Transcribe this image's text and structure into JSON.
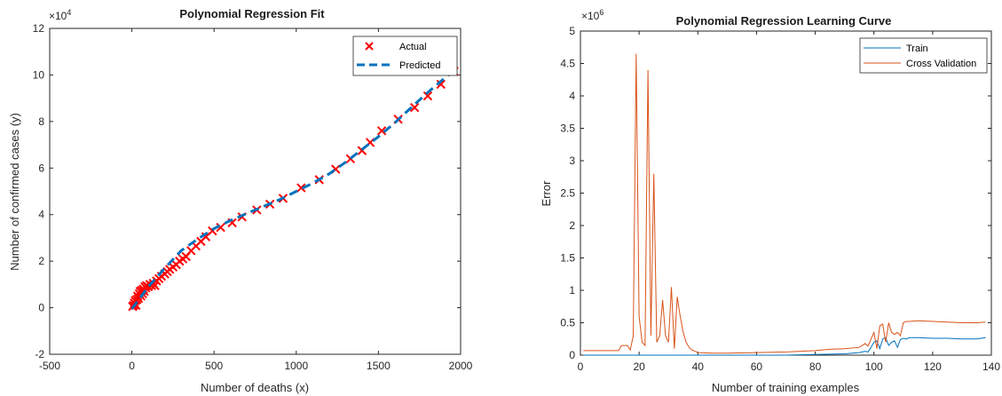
{
  "chart_data": [
    {
      "type": "scatter",
      "title": "Polynomial Regression Fit",
      "xlabel": "Number of deaths (x)",
      "ylabel": "Number of confirmed cases (y)",
      "xlim": [
        -500,
        2000
      ],
      "ylim": [
        -2,
        12
      ],
      "x_ticks": [
        "-500",
        "0",
        "500",
        "1000",
        "1500",
        "2000"
      ],
      "y_ticks": [
        "-2",
        "0",
        "2",
        "4",
        "6",
        "8",
        "10",
        "12"
      ],
      "y_multiplier": "×10",
      "y_multiplier_exp": "4",
      "legend_placement": "top-right",
      "series": [
        {
          "name": "Actual",
          "marker": "x",
          "color": "#ff0000",
          "x": [
            5,
            10,
            15,
            20,
            25,
            30,
            35,
            40,
            45,
            50,
            55,
            60,
            65,
            70,
            75,
            80,
            85,
            90,
            100,
            110,
            120,
            130,
            140,
            150,
            165,
            180,
            200,
            215,
            230,
            250,
            270,
            290,
            310,
            330,
            360,
            390,
            420,
            450,
            490,
            540,
            610,
            670,
            760,
            840,
            920,
            1030,
            1140,
            1240,
            1330,
            1400,
            1450,
            1520,
            1620,
            1720,
            1800,
            1880,
            1960
          ],
          "y": [
            0.05,
            0.1,
            0.2,
            0.3,
            0.1,
            0.35,
            0.5,
            0.4,
            0.6,
            0.7,
            0.5,
            0.75,
            0.6,
            0.8,
            0.7,
            0.9,
            0.85,
            0.95,
            0.9,
            1.0,
            0.95,
            1.05,
            0.95,
            1.15,
            1.25,
            1.35,
            1.45,
            1.55,
            1.65,
            1.75,
            1.85,
            2.0,
            2.1,
            2.2,
            2.45,
            2.65,
            2.85,
            3.05,
            3.3,
            3.45,
            3.65,
            3.9,
            4.2,
            4.45,
            4.7,
            5.15,
            5.5,
            5.95,
            6.4,
            6.75,
            7.1,
            7.6,
            8.1,
            8.6,
            9.1,
            9.6,
            10.15
          ]
        },
        {
          "name": "Predicted",
          "line": "dashed",
          "color": "#0072bd",
          "x": [
            0,
            100,
            200,
            300,
            400,
            500,
            600,
            700,
            800,
            900,
            1000,
            1100,
            1200,
            1300,
            1400,
            1500,
            1600,
            1700,
            1800,
            1900,
            1960
          ],
          "y": [
            -0.05,
            0.9,
            1.7,
            2.45,
            2.95,
            3.4,
            3.75,
            4.05,
            4.35,
            4.65,
            5.0,
            5.35,
            5.75,
            6.25,
            6.8,
            7.35,
            7.95,
            8.6,
            9.25,
            9.85,
            10.2
          ]
        }
      ]
    },
    {
      "type": "line",
      "title": "Polynomial Regression Learning Curve",
      "xlabel": "Number of training examples",
      "ylabel": "Error",
      "xlim": [
        0,
        140
      ],
      "ylim": [
        0,
        5
      ],
      "x_ticks": [
        "0",
        "20",
        "40",
        "60",
        "80",
        "100",
        "120",
        "140"
      ],
      "y_ticks": [
        "0",
        "0.5",
        "1",
        "1.5",
        "2",
        "2.5",
        "3",
        "3.5",
        "4",
        "4.5",
        "5"
      ],
      "y_multiplier": "×10",
      "y_multiplier_exp": "6",
      "legend_placement": "top-right",
      "series": [
        {
          "name": "Train",
          "color": "#0072bd",
          "x": [
            1,
            10,
            20,
            30,
            40,
            50,
            60,
            70,
            80,
            90,
            95,
            97,
            98,
            99,
            100,
            101,
            102,
            103,
            104,
            105,
            106,
            107,
            108,
            109,
            110,
            111,
            112,
            115,
            120,
            125,
            130,
            135,
            138
          ],
          "y": [
            0.0,
            0.0,
            0.0,
            0.0,
            0.0,
            0.0,
            0.0,
            0.0,
            0.01,
            0.02,
            0.04,
            0.06,
            0.05,
            0.12,
            0.2,
            0.22,
            0.1,
            0.25,
            0.27,
            0.15,
            0.2,
            0.22,
            0.12,
            0.24,
            0.26,
            0.25,
            0.27,
            0.27,
            0.26,
            0.26,
            0.25,
            0.25,
            0.27
          ]
        },
        {
          "name": "Cross Validation",
          "color": "#d95319",
          "x": [
            1,
            5,
            10,
            13,
            14,
            15,
            16,
            17,
            18,
            19,
            20,
            21,
            22,
            23,
            24,
            25,
            26,
            27,
            28,
            29,
            30,
            31,
            32,
            33,
            34,
            35,
            36,
            37,
            38,
            39,
            40,
            45,
            50,
            60,
            70,
            80,
            85,
            90,
            95,
            97,
            98,
            99,
            100,
            101,
            102,
            103,
            104,
            105,
            106,
            107,
            108,
            109,
            110,
            111,
            112,
            115,
            120,
            125,
            130,
            135,
            138
          ],
          "y": [
            0.07,
            0.07,
            0.07,
            0.07,
            0.15,
            0.15,
            0.15,
            0.08,
            0.3,
            4.65,
            0.6,
            0.2,
            0.15,
            4.4,
            0.3,
            2.8,
            0.2,
            0.3,
            0.85,
            0.3,
            0.2,
            1.05,
            0.1,
            0.9,
            0.6,
            0.35,
            0.2,
            0.12,
            0.08,
            0.06,
            0.04,
            0.03,
            0.03,
            0.04,
            0.05,
            0.07,
            0.09,
            0.1,
            0.12,
            0.18,
            0.14,
            0.25,
            0.35,
            0.1,
            0.45,
            0.48,
            0.2,
            0.5,
            0.35,
            0.32,
            0.35,
            0.3,
            0.5,
            0.52,
            0.52,
            0.53,
            0.52,
            0.51,
            0.5,
            0.5,
            0.51
          ]
        }
      ]
    }
  ]
}
